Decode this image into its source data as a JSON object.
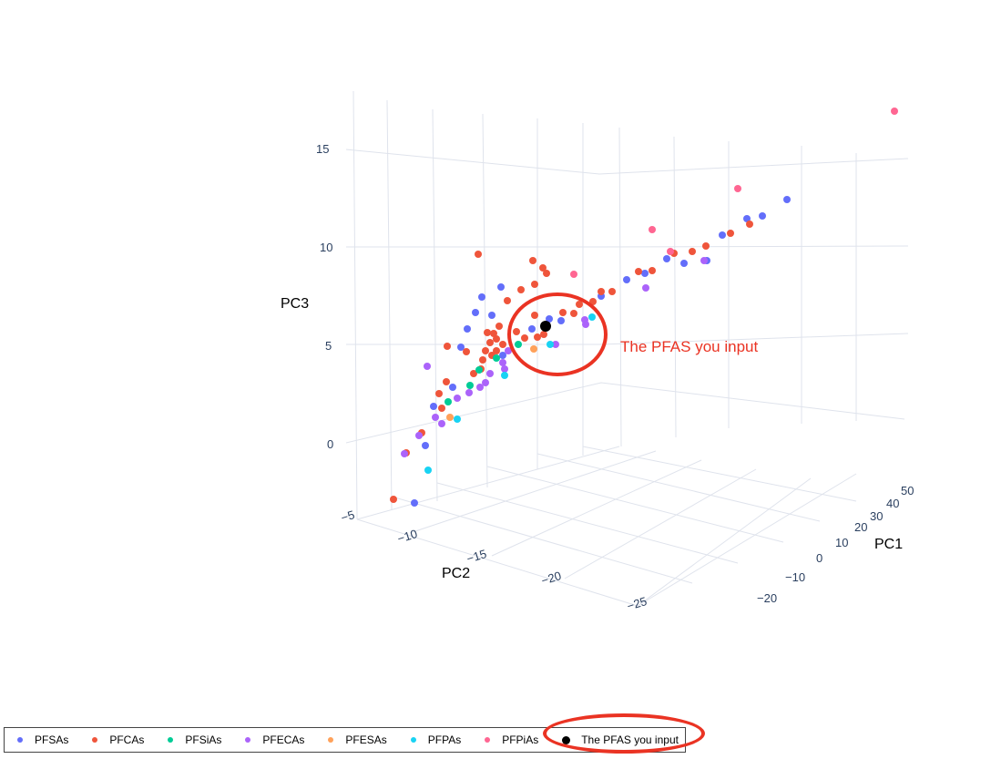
{
  "chart_data": {
    "type": "scatter",
    "dimensions": 3,
    "title": "",
    "axes": {
      "x": {
        "label": "PC1",
        "ticks": [
          "−20",
          "−10",
          "0",
          "10",
          "20",
          "30",
          "40",
          "50"
        ]
      },
      "y": {
        "label": "PC2",
        "ticks": [
          "−5",
          "−10",
          "−15",
          "−20",
          "−25"
        ]
      },
      "z": {
        "label": "PC3",
        "ticks": [
          "0",
          "5",
          "10",
          "15"
        ]
      }
    },
    "grid": true,
    "legend_position": "bottom",
    "series": [
      {
        "name": "PFSAs",
        "color": "#636efa"
      },
      {
        "name": "PFCAs",
        "color": "#ef553b"
      },
      {
        "name": "PFSiAs",
        "color": "#00cc96"
      },
      {
        "name": "PFECAs",
        "color": "#ab63fa"
      },
      {
        "name": "PFESAs",
        "color": "#ffa15a"
      },
      {
        "name": "PFPAs",
        "color": "#19d3f3"
      },
      {
        "name": "PFPiAs",
        "color": "#ff6692"
      },
      {
        "name": "The PFAS you input",
        "color": "#000000"
      }
    ],
    "annotation": {
      "text": "The PFAS you input",
      "color": "#ea3323"
    }
  }
}
